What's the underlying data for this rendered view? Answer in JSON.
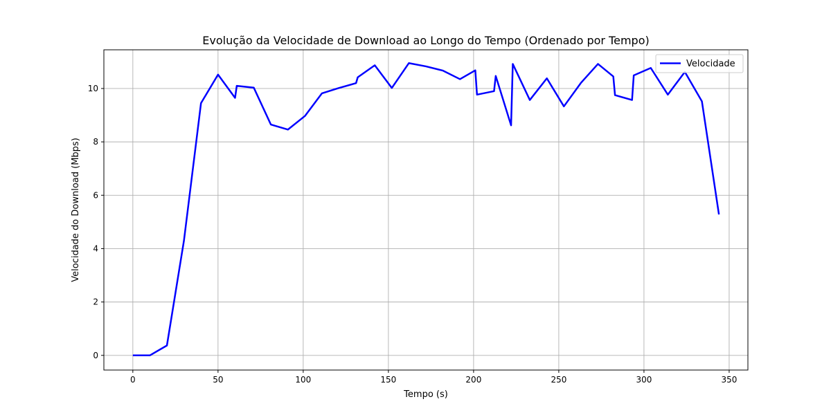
{
  "chart_data": {
    "type": "line",
    "title": "Evolução da Velocidade de Download ao Longo do Tempo (Ordenado por Tempo)",
    "xlabel": "Tempo (s)",
    "ylabel": "Velocidade do Download (Mbps)",
    "xlim": [
      -17,
      361
    ],
    "ylim": [
      -0.55,
      11.45
    ],
    "xticks": [
      0,
      50,
      100,
      150,
      200,
      250,
      300,
      350
    ],
    "yticks": [
      0,
      2,
      4,
      6,
      8,
      10
    ],
    "grid": true,
    "legend_position": "top-right",
    "series": [
      {
        "name": "Velocidade",
        "color": "#0000ff",
        "x": [
          0,
          10,
          20,
          30,
          37,
          40,
          50,
          60,
          61,
          71,
          81,
          91,
          101,
          111,
          121,
          131,
          132,
          142,
          152,
          162,
          172,
          182,
          192,
          201,
          202,
          212,
          213,
          222,
          223,
          233,
          243,
          253,
          263,
          273,
          282,
          283,
          293,
          294,
          304,
          314,
          324,
          334,
          344
        ],
        "y": [
          0,
          0,
          0.37,
          4.3,
          7.9,
          9.45,
          10.52,
          9.65,
          10.1,
          10.03,
          8.65,
          8.46,
          8.97,
          9.82,
          10.02,
          10.2,
          10.42,
          10.87,
          10.02,
          10.95,
          10.83,
          10.67,
          10.35,
          10.68,
          9.77,
          9.9,
          10.47,
          8.62,
          10.92,
          9.57,
          10.38,
          9.33,
          10.21,
          10.92,
          10.45,
          9.75,
          9.57,
          10.49,
          10.77,
          9.77,
          10.62,
          9.52,
          5.28
        ]
      }
    ]
  }
}
